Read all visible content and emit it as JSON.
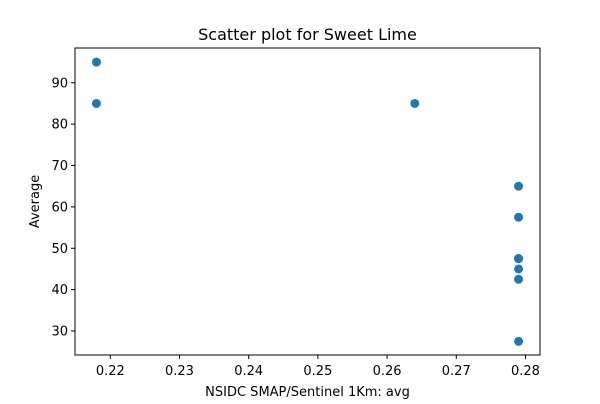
{
  "chart_data": {
    "type": "scatter",
    "title": "Scatter plot for Sweet Lime",
    "xlabel": "NSIDC SMAP/Sentinel 1Km: avg",
    "ylabel": "Average",
    "xlim": [
      0.2149,
      0.2821
    ],
    "ylim": [
      24.2,
      98.4
    ],
    "xticks": [
      0.22,
      0.23,
      0.24,
      0.25,
      0.26,
      0.27,
      0.28
    ],
    "xtick_labels": [
      "0.22",
      "0.23",
      "0.24",
      "0.25",
      "0.26",
      "0.27",
      "0.28"
    ],
    "yticks": [
      30,
      40,
      50,
      60,
      70,
      80,
      90
    ],
    "ytick_labels": [
      "30",
      "40",
      "50",
      "60",
      "70",
      "80",
      "90"
    ],
    "grid": false,
    "marker_color": "#1f77b4",
    "points": [
      {
        "x": 0.218,
        "y": 95
      },
      {
        "x": 0.218,
        "y": 85
      },
      {
        "x": 0.264,
        "y": 85
      },
      {
        "x": 0.279,
        "y": 65
      },
      {
        "x": 0.279,
        "y": 57.5
      },
      {
        "x": 0.279,
        "y": 47.5
      },
      {
        "x": 0.279,
        "y": 47.5
      },
      {
        "x": 0.279,
        "y": 45
      },
      {
        "x": 0.279,
        "y": 42.5
      },
      {
        "x": 0.279,
        "y": 27.5
      }
    ]
  }
}
